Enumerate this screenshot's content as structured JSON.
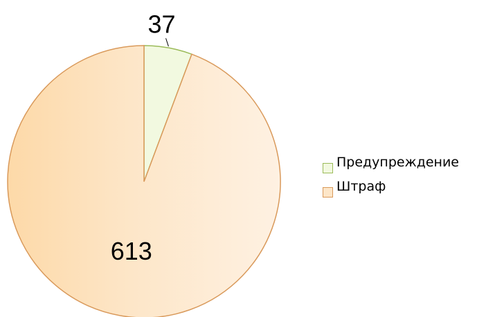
{
  "chart_data": {
    "type": "pie",
    "categories": [
      "Предупреждение",
      "Штраф"
    ],
    "values": [
      37,
      613
    ],
    "colors": [
      "#f2f9e0",
      "#fde6c8"
    ],
    "stroke_colors": [
      "#9bbb59",
      "#d9995a"
    ],
    "legend": "right"
  }
}
